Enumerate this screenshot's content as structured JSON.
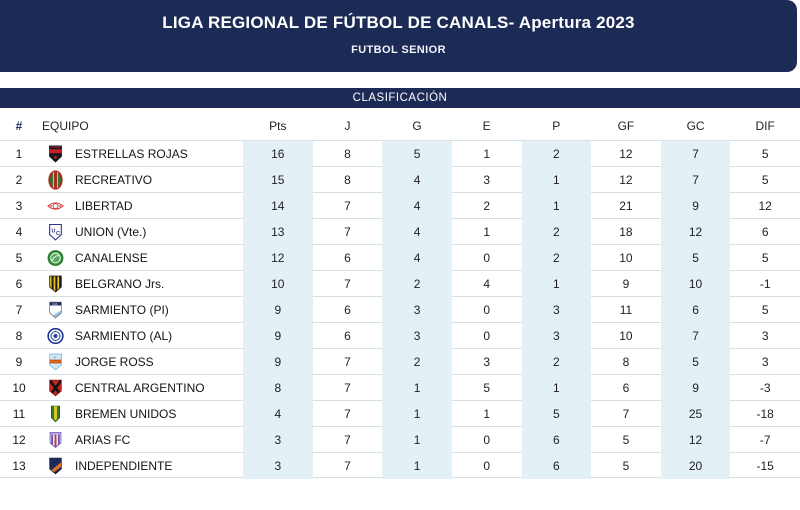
{
  "banner": {
    "title": "LIGA REGIONAL DE FÚTBOL DE CANALS- Apertura 2023",
    "subtitle": "FUTBOL SENIOR"
  },
  "section": {
    "label": "CLASIFICACIÓN"
  },
  "table": {
    "rank_header": "#",
    "team_header": "EQUIPO",
    "stat_headers": [
      "Pts",
      "J",
      "G",
      "E",
      "P",
      "GF",
      "GC",
      "DIF"
    ],
    "tinted_stat_columns": [
      0,
      2,
      4,
      6
    ],
    "rows": [
      {
        "pos": 1,
        "team": "ESTRELLAS ROJAS",
        "crest": "estrellas-rojas-crest",
        "values": [
          16,
          8,
          5,
          1,
          2,
          12,
          7,
          5
        ]
      },
      {
        "pos": 2,
        "team": "RECREATIVO",
        "crest": "recreativo-crest",
        "values": [
          15,
          8,
          4,
          3,
          1,
          12,
          7,
          5
        ]
      },
      {
        "pos": 3,
        "team": "LIBERTAD",
        "crest": "libertad-crest",
        "values": [
          14,
          7,
          4,
          2,
          1,
          21,
          9,
          12
        ]
      },
      {
        "pos": 4,
        "team": "UNION (Vte.)",
        "crest": "union-crest",
        "values": [
          13,
          7,
          4,
          1,
          2,
          18,
          12,
          6
        ]
      },
      {
        "pos": 5,
        "team": "CANALENSE",
        "crest": "canalense-crest",
        "values": [
          12,
          6,
          4,
          0,
          2,
          10,
          5,
          5
        ]
      },
      {
        "pos": 6,
        "team": "BELGRANO Jrs.",
        "crest": "belgrano-crest",
        "values": [
          10,
          7,
          2,
          4,
          1,
          9,
          10,
          -1
        ]
      },
      {
        "pos": 7,
        "team": "SARMIENTO (PI)",
        "crest": "sarmiento-pi-crest",
        "values": [
          9,
          6,
          3,
          0,
          3,
          11,
          6,
          5
        ]
      },
      {
        "pos": 8,
        "team": "SARMIENTO (AL)",
        "crest": "sarmiento-al-crest",
        "values": [
          9,
          6,
          3,
          0,
          3,
          10,
          7,
          3
        ]
      },
      {
        "pos": 9,
        "team": "JORGE ROSS",
        "crest": "jorge-ross-crest",
        "values": [
          9,
          7,
          2,
          3,
          2,
          8,
          5,
          3
        ]
      },
      {
        "pos": 10,
        "team": "CENTRAL ARGENTINO",
        "crest": "central-argentino-crest",
        "values": [
          8,
          7,
          1,
          5,
          1,
          6,
          9,
          -3
        ]
      },
      {
        "pos": 11,
        "team": "BREMEN UNIDOS",
        "crest": "bremen-unidos-crest",
        "values": [
          4,
          7,
          1,
          1,
          5,
          7,
          25,
          -18
        ]
      },
      {
        "pos": 12,
        "team": "ARIAS FC",
        "crest": "arias-fc-crest",
        "values": [
          3,
          7,
          1,
          0,
          6,
          5,
          12,
          -7
        ]
      },
      {
        "pos": 13,
        "team": "INDEPENDIENTE",
        "crest": "independiente-crest",
        "values": [
          3,
          7,
          1,
          0,
          6,
          5,
          20,
          -15
        ]
      }
    ]
  },
  "colors": {
    "navy": "#1c2a56",
    "column_tint": "#e3f1f7",
    "row_border": "#d9e0e5"
  }
}
